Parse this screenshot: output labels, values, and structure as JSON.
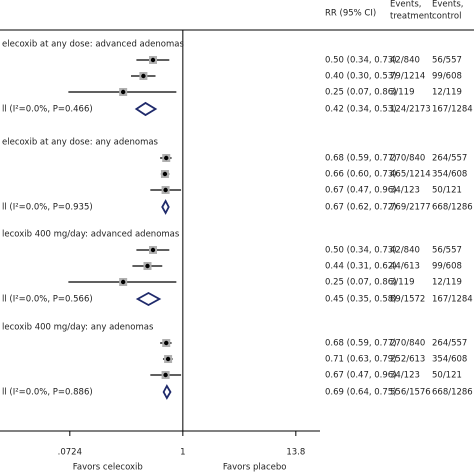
{
  "chart_data": {
    "type": "forest",
    "header": {
      "rr": "RR (95% CI)",
      "treatment": [
        "Events,",
        "treatment"
      ],
      "control": [
        "Events,",
        "control"
      ]
    },
    "xlim": [
      0.0143,
      24.2
    ],
    "xscale": "log",
    "xticks": [
      {
        "value": 0.0724,
        "label": ".0724"
      },
      1,
      13.8
    ],
    "null_line": 1,
    "favors_left": "Favors celecoxib",
    "favors_right": "Favors placebo",
    "color": "#000000",
    "diamond_color": "#1f2a6b",
    "groups": [
      {
        "label": "elecoxib at any dose: advanced adenomas",
        "rows": [
          {
            "rr": 0.5,
            "lo": 0.34,
            "hi": 0.73,
            "rr_label": "0.50 (0.34, 0.73)",
            "treatment": "42/840",
            "control": "56/557"
          },
          {
            "rr": 0.4,
            "lo": 0.3,
            "hi": 0.53,
            "rr_label": "0.40 (0.30, 0.53)",
            "treatment": "79/1214",
            "control": "99/608"
          },
          {
            "rr": 0.25,
            "lo": 0.07,
            "hi": 0.86,
            "rr_label": "0.25 (0.07, 0.86)",
            "treatment": "3/119",
            "control": "12/119"
          }
        ],
        "overall": {
          "label": "ll (I²=0.0%, P=0.466)",
          "rr": 0.42,
          "lo": 0.34,
          "hi": 0.53,
          "rr_label": "0.42 (0.34, 0.53)",
          "treatment": "124/2173",
          "control": "167/1284"
        }
      },
      {
        "label": "elecoxib at any dose: any adenomas",
        "rows": [
          {
            "rr": 0.68,
            "lo": 0.59,
            "hi": 0.77,
            "rr_label": "0.68 (0.59, 0.77)",
            "treatment": "270/840",
            "control": "264/557"
          },
          {
            "rr": 0.66,
            "lo": 0.6,
            "hi": 0.73,
            "rr_label": "0.66 (0.60, 0.73)",
            "treatment": "465/1214",
            "control": "354/608"
          },
          {
            "rr": 0.67,
            "lo": 0.47,
            "hi": 0.96,
            "rr_label": "0.67 (0.47, 0.96)",
            "treatment": "34/123",
            "control": "50/121"
          }
        ],
        "overall": {
          "label": "ll (I²=0.0%, P=0.935)",
          "rr": 0.67,
          "lo": 0.62,
          "hi": 0.72,
          "rr_label": "0.67 (0.62, 0.72)",
          "treatment": "769/2177",
          "control": "668/1286"
        }
      },
      {
        "label": "lecoxib 400 mg/day: advanced adenomas",
        "rows": [
          {
            "rr": 0.5,
            "lo": 0.34,
            "hi": 0.73,
            "rr_label": "0.50 (0.34, 0.73)",
            "treatment": "42/840",
            "control": "56/557"
          },
          {
            "rr": 0.44,
            "lo": 0.31,
            "hi": 0.62,
            "rr_label": "0.44 (0.31, 0.62)",
            "treatment": "44/613",
            "control": "99/608"
          },
          {
            "rr": 0.25,
            "lo": 0.07,
            "hi": 0.86,
            "rr_label": "0.25 (0.07, 0.86)",
            "treatment": "3/119",
            "control": "12/119"
          }
        ],
        "overall": {
          "label": "ll (I²=0.0%, P=0.566)",
          "rr": 0.45,
          "lo": 0.35,
          "hi": 0.58,
          "rr_label": "0.45 (0.35, 0.58)",
          "treatment": "89/1572",
          "control": "167/1284"
        }
      },
      {
        "label": "lecoxib 400 mg/day: any adenomas",
        "rows": [
          {
            "rr": 0.68,
            "lo": 0.59,
            "hi": 0.77,
            "rr_label": "0.68 (0.59, 0.77)",
            "treatment": "270/840",
            "control": "264/557"
          },
          {
            "rr": 0.71,
            "lo": 0.63,
            "hi": 0.79,
            "rr_label": "0.71 (0.63, 0.79)",
            "treatment": "252/613",
            "control": "354/608"
          },
          {
            "rr": 0.67,
            "lo": 0.47,
            "hi": 0.96,
            "rr_label": "0.67 (0.47, 0.96)",
            "treatment": "34/123",
            "control": "50/121"
          }
        ],
        "overall": {
          "label": "ll (I²=0.0%, P=0.886)",
          "rr": 0.69,
          "lo": 0.64,
          "hi": 0.75,
          "rr_label": "0.69 (0.64, 0.75)",
          "treatment": "556/1576",
          "control": "668/1286"
        }
      }
    ]
  }
}
